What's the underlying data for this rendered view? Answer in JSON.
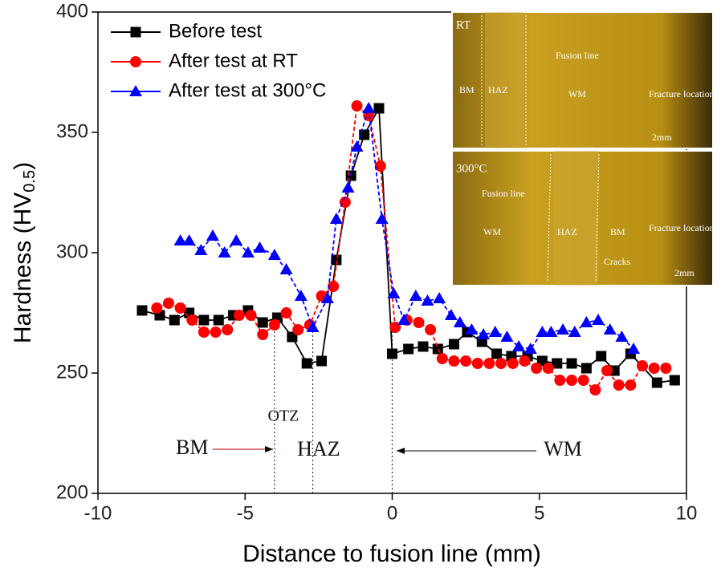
{
  "chart_data": {
    "type": "line",
    "x_label": "Distance to fusion line (mm)",
    "y_label": {
      "main": "Hardness (HV",
      "sub": "0.5",
      "end": ")"
    },
    "xlim": [
      -10,
      10
    ],
    "xticks": [
      -10,
      -5,
      0,
      5,
      10
    ],
    "ylim": [
      200,
      400
    ],
    "yticks": [
      200,
      250,
      300,
      350,
      400
    ],
    "legend": "upper left",
    "series": [
      {
        "name": "Before test",
        "color": "#000000",
        "marker": "square",
        "x": [
          -8.5,
          -7.9,
          -7.4,
          -6.9,
          -6.4,
          -5.9,
          -5.4,
          -4.9,
          -4.4,
          -3.9,
          -3.4,
          -2.9,
          -2.4,
          -1.9,
          -1.4,
          -0.95,
          -0.45,
          0,
          0.55,
          1.05,
          1.55,
          2.1,
          2.55,
          3.05,
          3.55,
          4.05,
          4.6,
          5.1,
          5.6,
          6.1,
          6.6,
          7.1,
          7.55,
          8.1,
          9.0,
          9.6
        ],
        "values": [
          276,
          274,
          272,
          275,
          272,
          272,
          274,
          276,
          271,
          273,
          265,
          254,
          255,
          297,
          332,
          349,
          360,
          258,
          260,
          261,
          260,
          262,
          267,
          263,
          258,
          257,
          257,
          255,
          254,
          254,
          252,
          257,
          251,
          258,
          246,
          247
        ]
      },
      {
        "name": "After test at RT",
        "color": "#ff0000",
        "marker": "circle",
        "x": [
          -8.0,
          -7.6,
          -7.2,
          -6.8,
          -6.4,
          -6.0,
          -5.6,
          -5.2,
          -4.8,
          -4.4,
          -4.0,
          -3.6,
          -3.2,
          -2.8,
          -2.4,
          -2.0,
          -1.6,
          -1.2,
          -0.8,
          -0.4,
          0.1,
          0.5,
          0.9,
          1.3,
          1.7,
          2.1,
          2.5,
          2.9,
          3.3,
          3.7,
          4.1,
          4.5,
          4.9,
          5.3,
          5.7,
          6.1,
          6.5,
          6.9,
          7.3,
          7.7,
          8.1,
          8.5,
          8.9,
          9.3
        ],
        "values": [
          277,
          279,
          277,
          272,
          267,
          267,
          268,
          274,
          274,
          266,
          270,
          275,
          268,
          270,
          282,
          286,
          321,
          361,
          357,
          336,
          269,
          272,
          271,
          268,
          256,
          255,
          255,
          254,
          254,
          254,
          254,
          255,
          252,
          252,
          247,
          247,
          247,
          243,
          251,
          245,
          245,
          253,
          252,
          252
        ]
      },
      {
        "name": "After test at 300°C",
        "color": "#0000ff",
        "marker": "triangle",
        "x": [
          -7.2,
          -6.9,
          -6.5,
          -6.1,
          -5.7,
          -5.3,
          -4.9,
          -4.5,
          -4.0,
          -3.6,
          -3.1,
          -2.7,
          -2.2,
          -1.9,
          -1.5,
          -1.2,
          -0.8,
          -0.35,
          0.05,
          0.4,
          0.8,
          1.2,
          1.6,
          2.0,
          2.3,
          2.7,
          3.1,
          3.5,
          3.9,
          4.3,
          4.7,
          5.1,
          5.4,
          5.8,
          6.2,
          6.6,
          7.0,
          7.4,
          7.8,
          8.2
        ],
        "values": [
          305,
          305,
          301,
          307,
          300,
          305,
          300,
          302,
          299,
          293,
          282,
          269,
          281,
          314,
          327,
          344,
          360,
          314,
          283,
          272,
          282,
          280,
          281,
          274,
          271,
          268,
          266,
          267,
          265,
          261,
          260,
          267,
          267,
          268,
          267,
          271,
          272,
          268,
          265,
          260
        ]
      }
    ],
    "reference_lines": [
      -4,
      -2.7,
      0
    ],
    "annotations": [
      "OTZ",
      "BM",
      "HAZ",
      "WM"
    ],
    "insets": [
      {
        "labels": [
          "RT",
          "BM",
          "HAZ",
          "Fusion line",
          "WM",
          "Fracture location",
          "2mm"
        ]
      },
      {
        "labels": [
          "300°C",
          "Fusion line",
          "WM",
          "HAZ",
          "BM",
          "Fracture location",
          "Cracks",
          "2mm"
        ]
      }
    ]
  }
}
